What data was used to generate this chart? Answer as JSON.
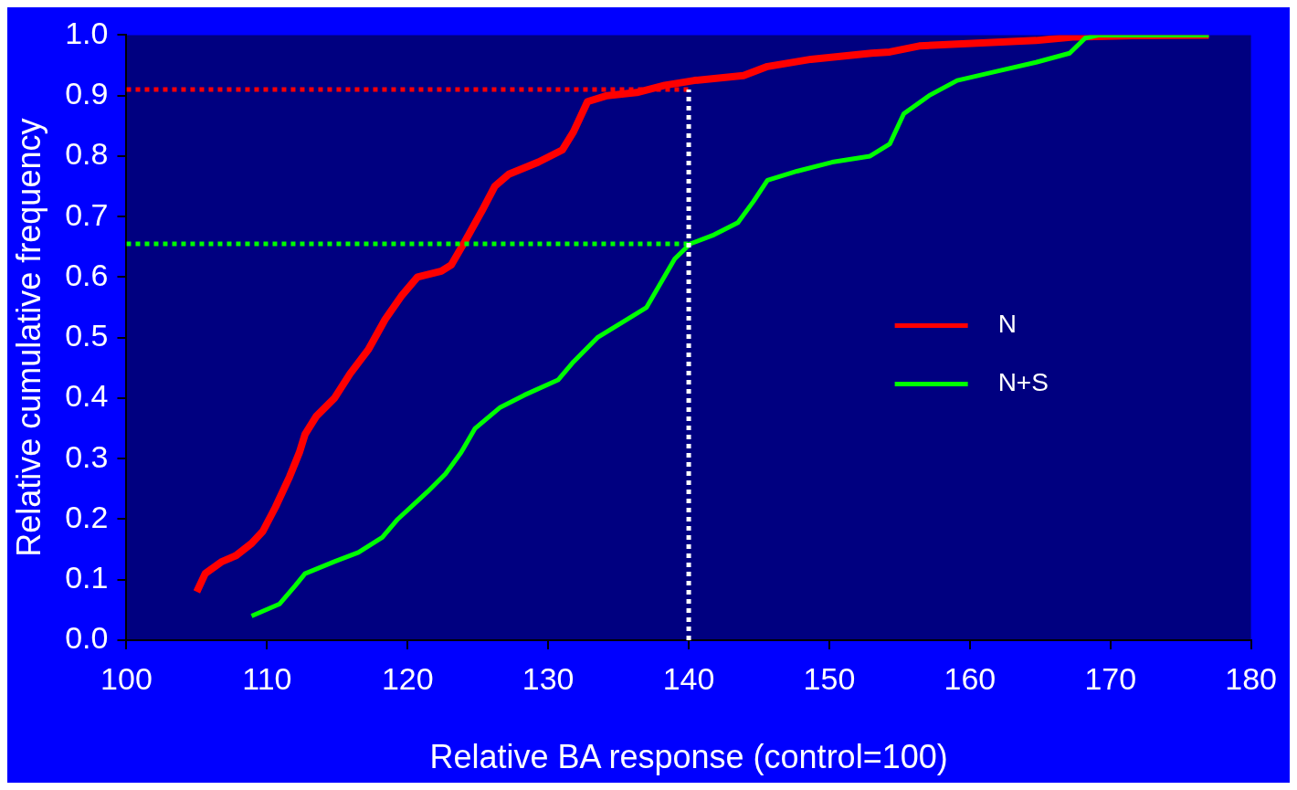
{
  "chart_data": {
    "type": "line",
    "xlabel": "Relative BA response (control=100)",
    "ylabel": "Relative cumulative frequency",
    "xlim": [
      100,
      180
    ],
    "xticks": [
      100,
      110,
      120,
      130,
      140,
      150,
      160,
      170,
      180
    ],
    "ylim": [
      0,
      1
    ],
    "yticks": [
      {
        "value": 0,
        "label": "0.0"
      },
      {
        "value": 0.1,
        "label": "0.1"
      },
      {
        "value": 0.2,
        "label": "0.2"
      },
      {
        "value": 0.3,
        "label": "0.3"
      },
      {
        "value": 0.4,
        "label": "0.4"
      },
      {
        "value": 0.5,
        "label": "0.5"
      },
      {
        "value": 0.6,
        "label": "0.6"
      },
      {
        "value": 0.7,
        "label": "0.7"
      },
      {
        "value": 0.8,
        "label": "0.8"
      },
      {
        "value": 0.9,
        "label": "0.9"
      },
      {
        "value": 1,
        "label": "1.0"
      }
    ],
    "grid": false,
    "legend": "center right",
    "marker": "none",
    "line_style": "solid",
    "series": [
      {
        "name": "N",
        "color": "#ff0000",
        "x": [
          105,
          105.6,
          106.8,
          107.8,
          108.9,
          109.7,
          110.6,
          111.6,
          112.3,
          112.7,
          113.5,
          114.8,
          115.9,
          117.2,
          118.4,
          119.6,
          120.7,
          122.4,
          123.1,
          124.1,
          125.3,
          126.2,
          127.2,
          129.3,
          131,
          131.8,
          132.8,
          134.2,
          136.3,
          138.3,
          140.4,
          143.9,
          145.6,
          148.7,
          153,
          154.3,
          156.4,
          159.8,
          164.7,
          167.5,
          171.6,
          177
        ],
        "values": [
          0.08,
          0.11,
          0.13,
          0.14,
          0.16,
          0.18,
          0.22,
          0.27,
          0.31,
          0.34,
          0.37,
          0.4,
          0.44,
          0.48,
          0.53,
          0.57,
          0.6,
          0.61,
          0.62,
          0.66,
          0.71,
          0.75,
          0.77,
          0.79,
          0.81,
          0.84,
          0.89,
          0.9,
          0.905,
          0.917,
          0.925,
          0.933,
          0.948,
          0.96,
          0.97,
          0.972,
          0.982,
          0.986,
          0.991,
          0.997,
          0.999,
          1
        ]
      },
      {
        "name": "N+S",
        "color": "#00ff00",
        "x": [
          108.9,
          110.9,
          112,
          112.7,
          114.8,
          116.5,
          118.2,
          119.3,
          121.4,
          122.7,
          123.8,
          124.8,
          126.6,
          128.3,
          130.7,
          131.8,
          133.5,
          135.6,
          137,
          138,
          139,
          140.1,
          141.8,
          143.5,
          144.6,
          145.6,
          147.7,
          150.2,
          152.9,
          154.3,
          155.3,
          157.1,
          159.1,
          161.9,
          164.7,
          167.1,
          168.2,
          169.2,
          177
        ],
        "values": [
          0.04,
          0.06,
          0.09,
          0.11,
          0.13,
          0.145,
          0.17,
          0.2,
          0.245,
          0.275,
          0.31,
          0.35,
          0.385,
          0.405,
          0.43,
          0.46,
          0.5,
          0.53,
          0.55,
          0.59,
          0.63,
          0.655,
          0.67,
          0.69,
          0.725,
          0.76,
          0.775,
          0.79,
          0.8,
          0.82,
          0.87,
          0.9,
          0.925,
          0.94,
          0.955,
          0.97,
          0.995,
          1,
          1
        ]
      },
      {
        "color": "#ff0000",
        "line_style": "dotted",
        "x": [
          100,
          140
        ],
        "values": [
          0.91,
          0.91
        ]
      },
      {
        "color": "#00ff00",
        "line_style": "dotted",
        "x": [
          100,
          140
        ],
        "values": [
          0.655,
          0.655
        ]
      },
      {
        "color": "#ffffff",
        "line_style": "dotted",
        "x": [
          140,
          140
        ],
        "values": [
          0,
          0.91
        ]
      }
    ]
  }
}
